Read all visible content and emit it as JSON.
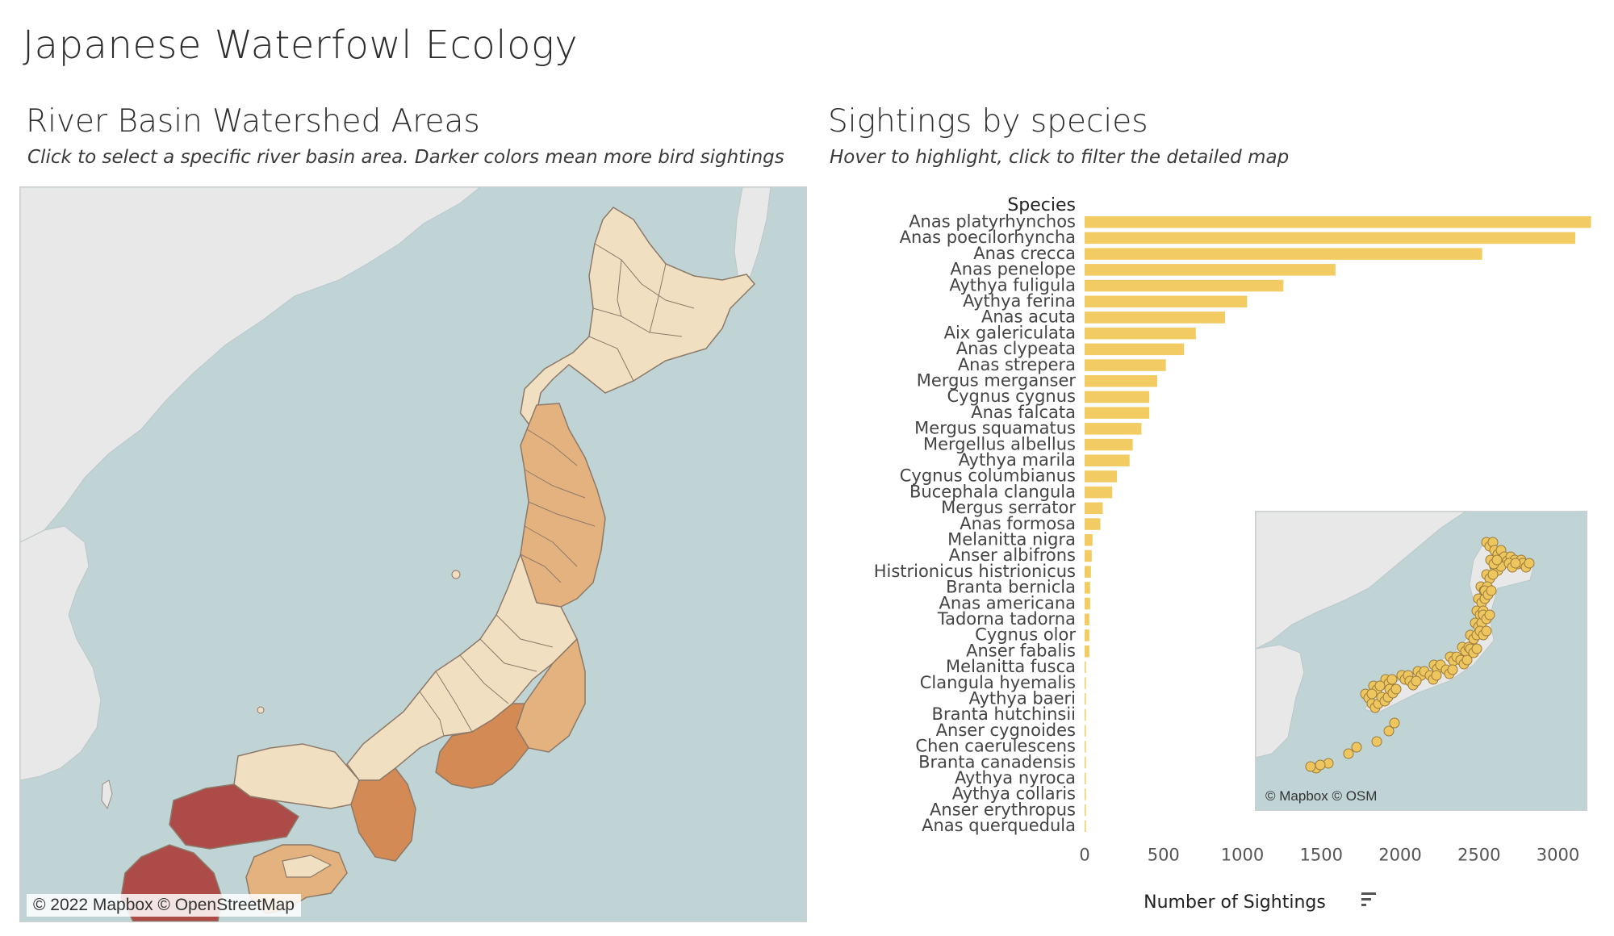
{
  "dashboard": {
    "title": "Japanese Waterfowl Ecology"
  },
  "left_panel": {
    "title": "River Basin Watershed Areas",
    "subtitle": "Click to select a specific river basin area. Darker colors mean more bird sightings",
    "map_attribution": "© 2022 Mapbox © OpenStreetMap",
    "colors": {
      "water": "#c0d4d6",
      "land": "#e8e8e8",
      "low": "#f1dfc2",
      "medium": "#e4b27e",
      "high": "#d48a55",
      "highest": "#ac4b48"
    }
  },
  "right_panel": {
    "title": "Sightings by species",
    "subtitle": "Hover to highlight, click to filter the detailed map"
  },
  "inset_map": {
    "attribution": "© Mapbox © OSM",
    "marker_color": "#eec65f"
  },
  "chart_data": {
    "type": "bar",
    "orientation": "horizontal",
    "sort": "descending",
    "row_header": "Species",
    "xlabel": "Number of Sightings",
    "xlim": [
      0,
      3200
    ],
    "xticks": [
      0,
      500,
      1000,
      1500,
      2000,
      2500,
      3000
    ],
    "bar_color": "#f2cb62",
    "categories": [
      "Anas platyrhynchos",
      "Anas poecilorhyncha",
      "Anas crecca",
      "Anas penelope",
      "Aythya fuligula",
      "Aythya ferina",
      "Anas acuta",
      "Aix galericulata",
      "Anas clypeata",
      "Anas strepera",
      "Mergus merganser",
      "Cygnus cygnus",
      "Anas falcata",
      "Mergus squamatus",
      "Mergellus albellus",
      "Aythya marila",
      "Cygnus columbianus",
      "Bucephala clangula",
      "Mergus serrator",
      "Anas formosa",
      "Melanitta nigra",
      "Anser albifrons",
      "Histrionicus histrionicus",
      "Branta bernicla",
      "Anas americana",
      "Tadorna tadorna",
      "Cygnus olor",
      "Anser fabalis",
      "Melanitta fusca",
      "Clangula hyemalis",
      "Aythya baeri",
      "Branta hutchinsii",
      "Anser cygnoides",
      "Chen caerulescens",
      "Branta canadensis",
      "Aythya nyroca",
      "Aythya collaris",
      "Anser erythropus",
      "Anas querquedula"
    ],
    "values": [
      3210,
      3110,
      2520,
      1590,
      1260,
      1030,
      890,
      705,
      630,
      515,
      460,
      410,
      410,
      360,
      305,
      285,
      205,
      175,
      115,
      100,
      50,
      45,
      40,
      35,
      35,
      30,
      30,
      30,
      8,
      6,
      5,
      5,
      4,
      4,
      3,
      3,
      2,
      2,
      2
    ]
  }
}
